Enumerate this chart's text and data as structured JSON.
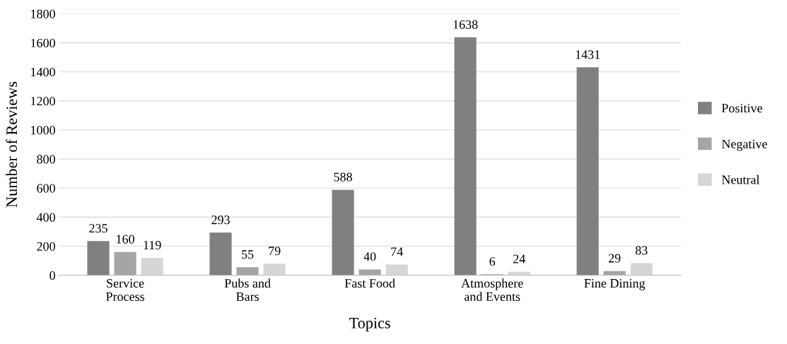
{
  "chart_data": {
    "type": "bar",
    "xlabel": "Topics",
    "ylabel": "Number of Reviews",
    "categories": [
      "Service\nProcess",
      "Pubs and\nBars",
      "Fast Food",
      "Atmosphere\nand Events",
      "Fine Dining"
    ],
    "series": [
      {
        "name": "Positive",
        "color": "#808080",
        "values": [
          235,
          293,
          588,
          1638,
          1431
        ]
      },
      {
        "name": "Negative",
        "color": "#a5a5a5",
        "values": [
          160,
          55,
          40,
          6,
          29
        ]
      },
      {
        "name": "Neutral",
        "color": "#d6d6d6",
        "values": [
          119,
          79,
          74,
          24,
          83
        ]
      }
    ],
    "ylim": [
      0,
      1800
    ],
    "yticks": [
      0,
      200,
      400,
      600,
      800,
      1000,
      1200,
      1400,
      1600,
      1800
    ],
    "grid": "y",
    "legend": "right",
    "data_labels": true
  }
}
